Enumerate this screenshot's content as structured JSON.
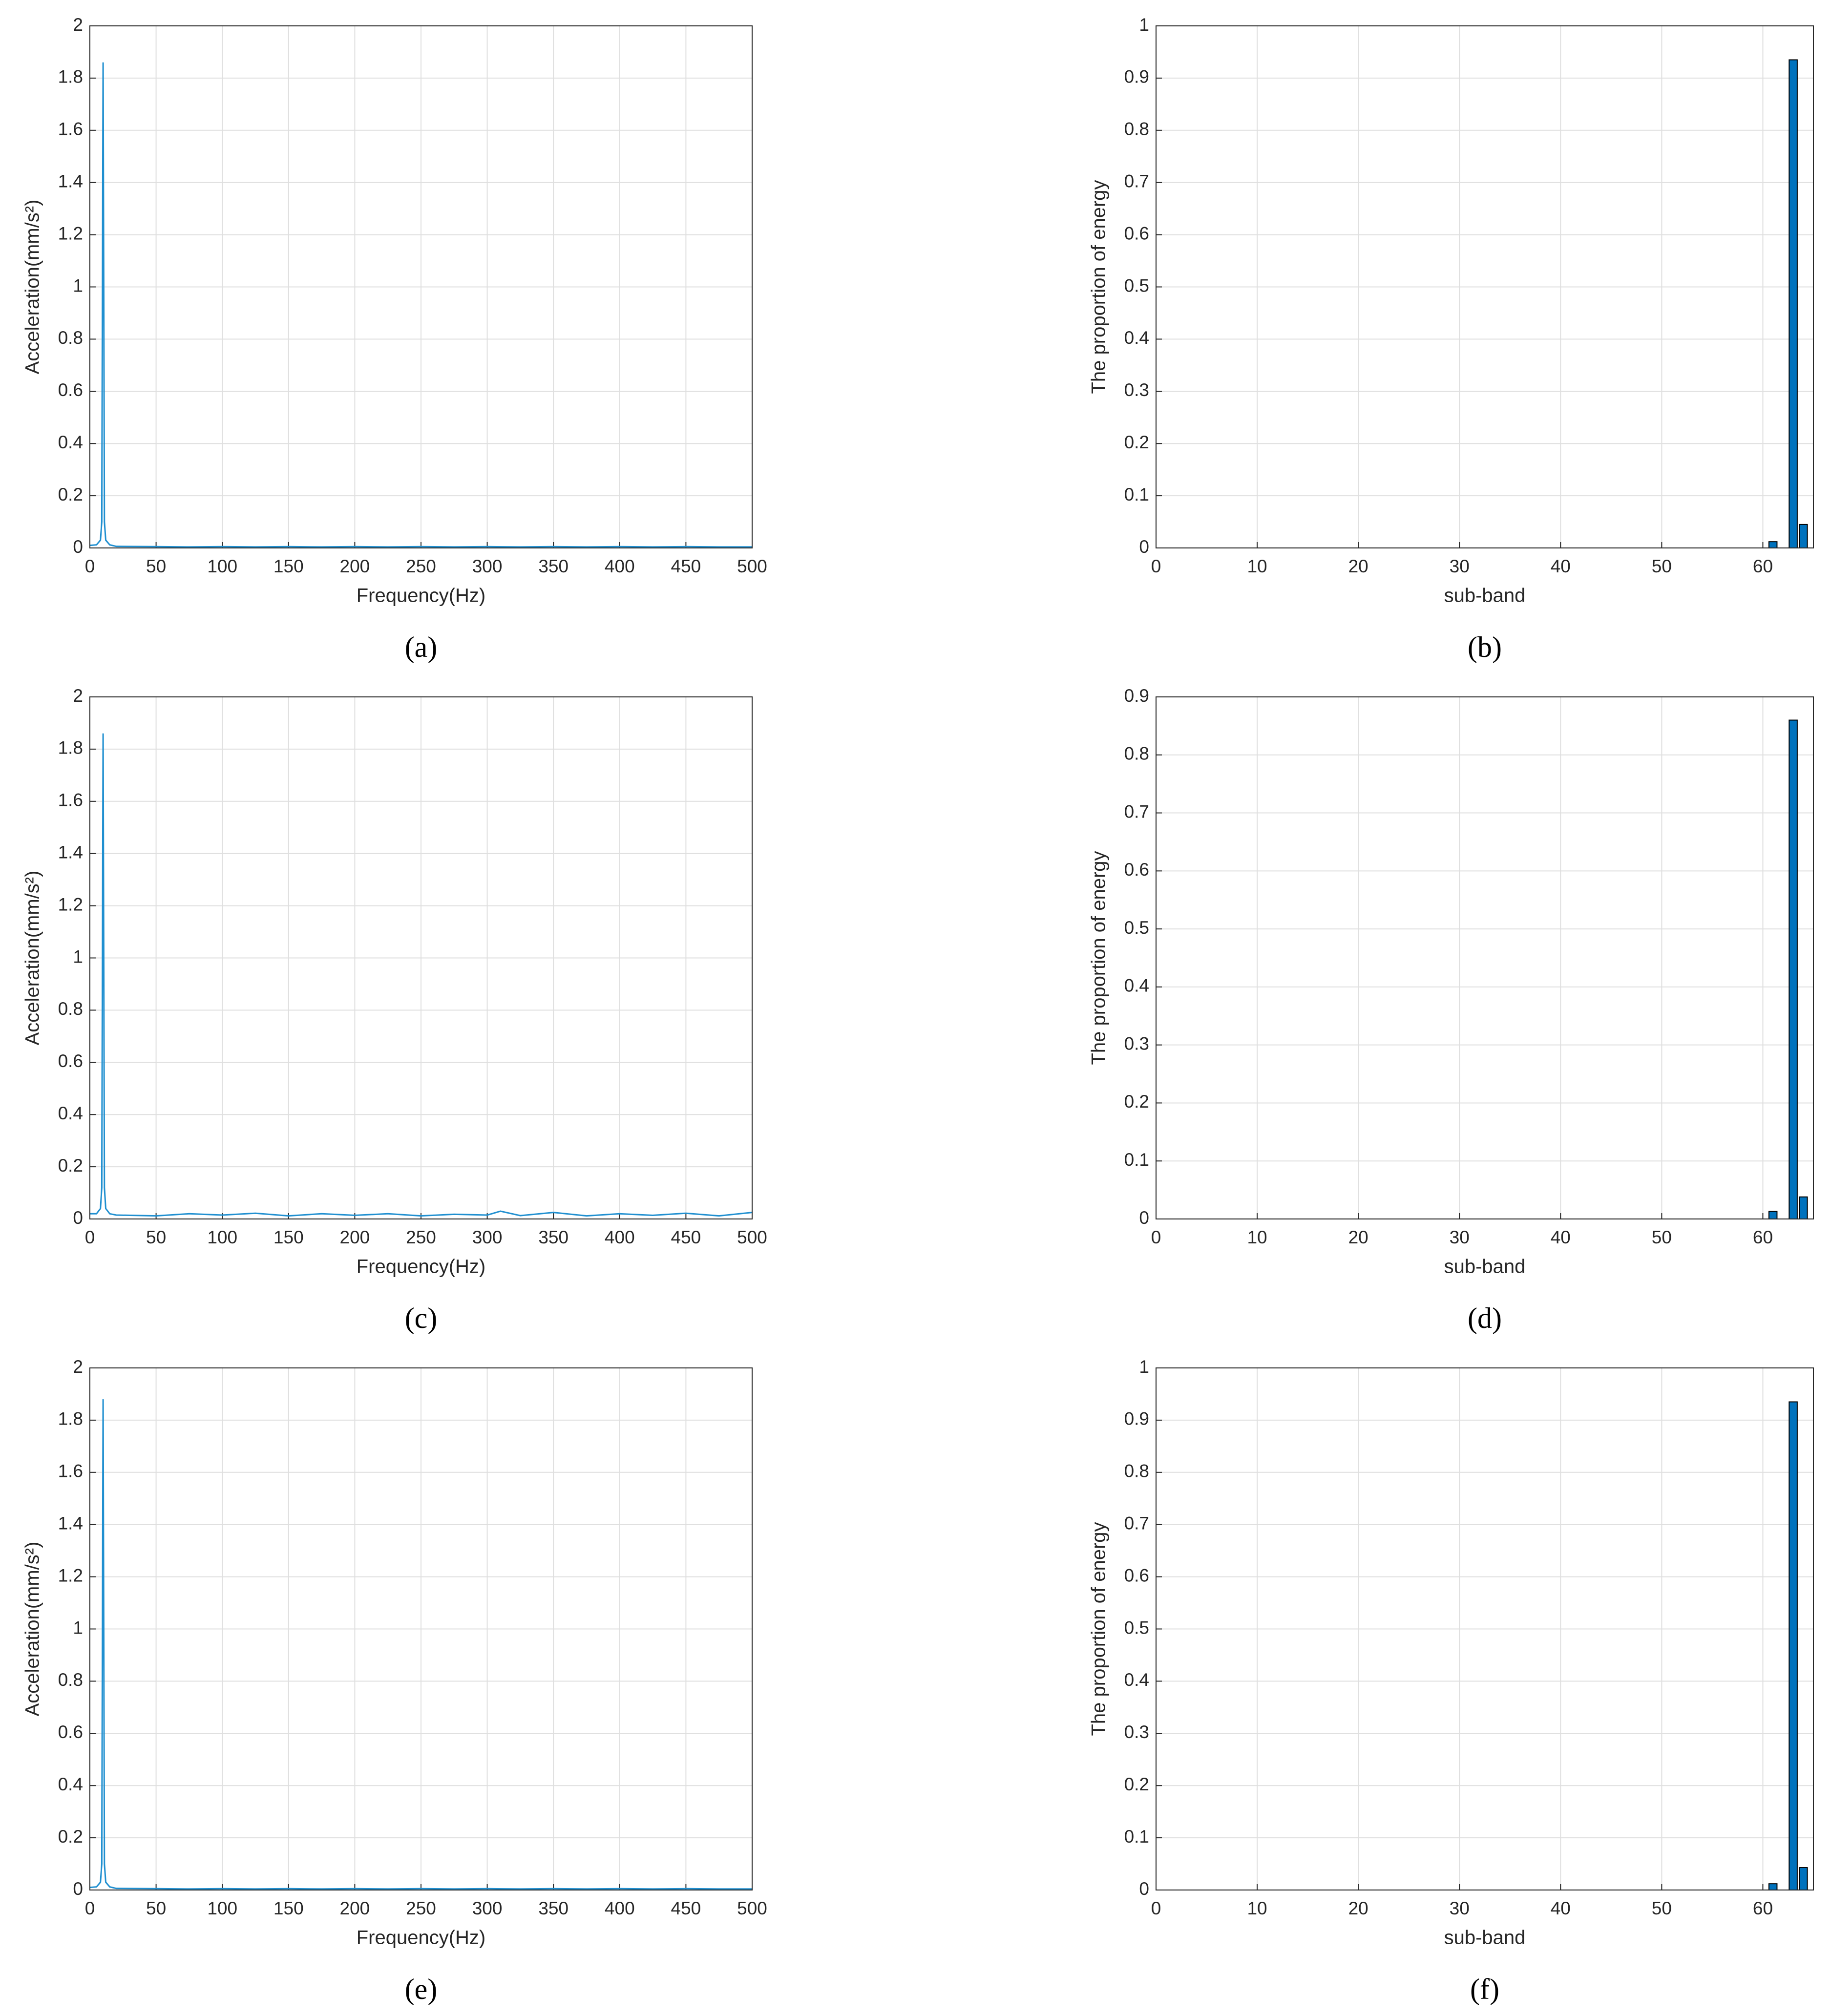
{
  "chart_data": [
    {
      "type": "line",
      "label": "(a)",
      "xlabel": "Frequency(Hz)",
      "ylabel": "Acceleration(mm/s²)",
      "color": "#1f8fd0",
      "grid": true,
      "x": [
        0,
        5,
        8,
        9,
        10,
        11,
        12,
        15,
        20,
        50,
        75,
        100,
        125,
        150,
        175,
        200,
        225,
        250,
        275,
        300,
        325,
        350,
        375,
        400,
        425,
        450,
        475,
        500
      ],
      "values": [
        0.01,
        0.012,
        0.03,
        0.1,
        1.86,
        0.1,
        0.03,
        0.012,
        0.006,
        0.005,
        0.004,
        0.005,
        0.004,
        0.005,
        0.004,
        0.005,
        0.004,
        0.005,
        0.004,
        0.005,
        0.004,
        0.005,
        0.004,
        0.005,
        0.004,
        0.005,
        0.004,
        0.004
      ],
      "xlim": [
        0,
        500
      ],
      "xticks": [
        0,
        50,
        100,
        150,
        200,
        250,
        300,
        350,
        400,
        450,
        500
      ],
      "ylim": [
        0,
        2
      ],
      "yticks": [
        0,
        0.2,
        0.4,
        0.6,
        0.8,
        1,
        1.2,
        1.4,
        1.6,
        1.8,
        2
      ]
    },
    {
      "type": "bar",
      "label": "(b)",
      "xlabel": "sub-band",
      "ylabel": "The proportion of energy",
      "color": "#0072bd",
      "grid": true,
      "x": [
        61,
        63,
        64
      ],
      "values": [
        0.012,
        0.935,
        0.045
      ],
      "xlim": [
        0,
        65
      ],
      "xticks": [
        0,
        10,
        20,
        30,
        40,
        50,
        60
      ],
      "ylim": [
        0,
        1
      ],
      "yticks": [
        0,
        0.1,
        0.2,
        0.3,
        0.4,
        0.5,
        0.6,
        0.7,
        0.8,
        0.9,
        1
      ]
    },
    {
      "type": "line",
      "label": "(c)",
      "xlabel": "Frequency(Hz)",
      "ylabel": "Acceleration(mm/s²)",
      "color": "#1f8fd0",
      "grid": true,
      "x": [
        0,
        5,
        8,
        9,
        10,
        11,
        12,
        15,
        20,
        50,
        75,
        100,
        125,
        150,
        175,
        200,
        225,
        250,
        275,
        300,
        310,
        325,
        350,
        375,
        400,
        425,
        450,
        475,
        500
      ],
      "values": [
        0.02,
        0.02,
        0.04,
        0.12,
        1.86,
        0.12,
        0.04,
        0.02,
        0.015,
        0.012,
        0.02,
        0.015,
        0.022,
        0.012,
        0.02,
        0.014,
        0.02,
        0.012,
        0.018,
        0.015,
        0.03,
        0.013,
        0.025,
        0.012,
        0.02,
        0.014,
        0.022,
        0.012,
        0.025
      ],
      "xlim": [
        0,
        500
      ],
      "xticks": [
        0,
        50,
        100,
        150,
        200,
        250,
        300,
        350,
        400,
        450,
        500
      ],
      "ylim": [
        0,
        2
      ],
      "yticks": [
        0,
        0.2,
        0.4,
        0.6,
        0.8,
        1,
        1.2,
        1.4,
        1.6,
        1.8,
        2
      ]
    },
    {
      "type": "bar",
      "label": "(d)",
      "xlabel": "sub-band",
      "ylabel": "The proportion of energy",
      "color": "#0072bd",
      "grid": true,
      "x": [
        61,
        63,
        64
      ],
      "values": [
        0.013,
        0.86,
        0.038
      ],
      "xlim": [
        0,
        65
      ],
      "xticks": [
        0,
        10,
        20,
        30,
        40,
        50,
        60
      ],
      "ylim": [
        0,
        0.9
      ],
      "yticks": [
        0,
        0.1,
        0.2,
        0.3,
        0.4,
        0.5,
        0.6,
        0.7,
        0.8,
        0.9
      ]
    },
    {
      "type": "line",
      "label": "(e)",
      "xlabel": "Frequency(Hz)",
      "ylabel": "Acceleration(mm/s²)",
      "color": "#1f8fd0",
      "grid": true,
      "x": [
        0,
        5,
        8,
        9,
        10,
        11,
        12,
        15,
        20,
        50,
        75,
        100,
        125,
        150,
        175,
        200,
        225,
        250,
        275,
        300,
        325,
        350,
        375,
        400,
        425,
        450,
        475,
        500
      ],
      "values": [
        0.01,
        0.012,
        0.03,
        0.1,
        1.88,
        0.1,
        0.03,
        0.012,
        0.006,
        0.005,
        0.004,
        0.005,
        0.004,
        0.005,
        0.004,
        0.005,
        0.004,
        0.005,
        0.004,
        0.005,
        0.004,
        0.005,
        0.004,
        0.005,
        0.004,
        0.005,
        0.004,
        0.004
      ],
      "xlim": [
        0,
        500
      ],
      "xticks": [
        0,
        50,
        100,
        150,
        200,
        250,
        300,
        350,
        400,
        450,
        500
      ],
      "ylim": [
        0,
        2
      ],
      "yticks": [
        0,
        0.2,
        0.4,
        0.6,
        0.8,
        1,
        1.2,
        1.4,
        1.6,
        1.8,
        2
      ]
    },
    {
      "type": "bar",
      "label": "(f)",
      "xlabel": "sub-band",
      "ylabel": "The proportion of energy",
      "color": "#0072bd",
      "grid": true,
      "x": [
        61,
        63,
        64
      ],
      "values": [
        0.012,
        0.935,
        0.043
      ],
      "xlim": [
        0,
        65
      ],
      "xticks": [
        0,
        10,
        20,
        30,
        40,
        50,
        60
      ],
      "ylim": [
        0,
        1
      ],
      "yticks": [
        0,
        0.1,
        0.2,
        0.3,
        0.4,
        0.5,
        0.6,
        0.7,
        0.8,
        0.9,
        1
      ]
    }
  ]
}
